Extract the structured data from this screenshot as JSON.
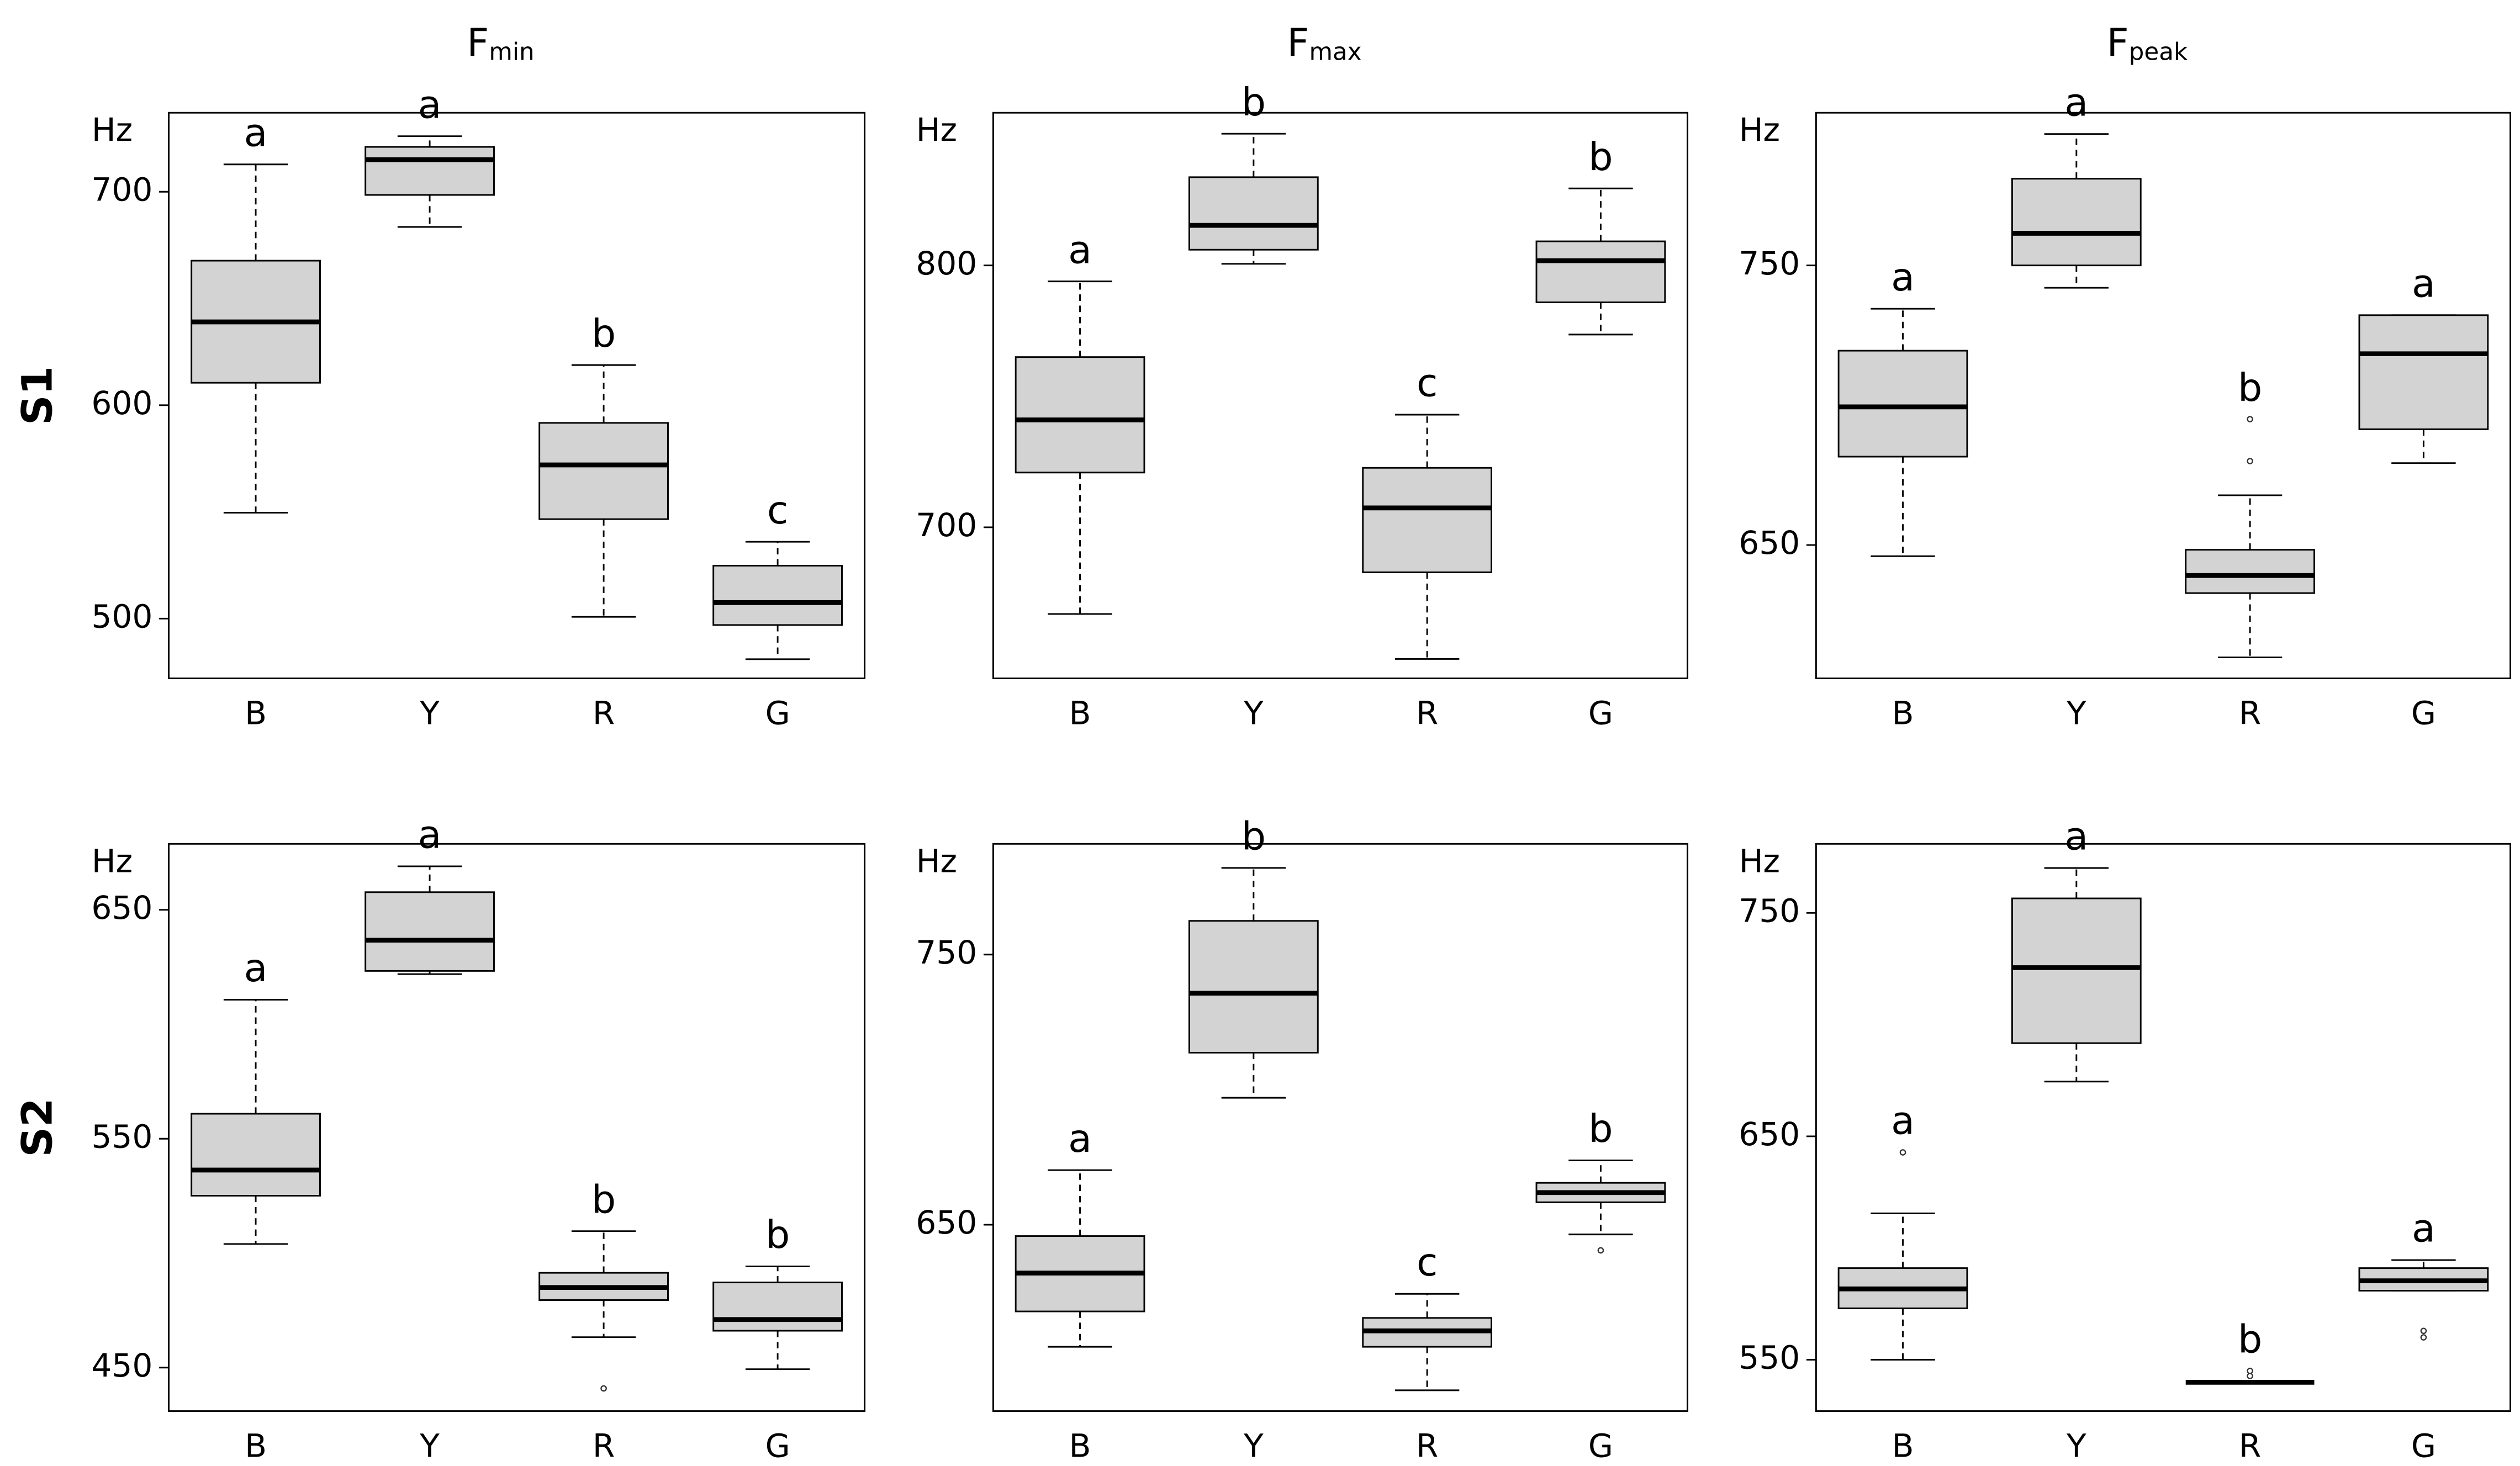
{
  "column_titles": [
    {
      "main": "F",
      "sub": "min"
    },
    {
      "main": "F",
      "sub": "max"
    },
    {
      "main": "F",
      "sub": "peak"
    }
  ],
  "row_labels": [
    "S1",
    "S2"
  ],
  "chart_data": [
    {
      "type": "box",
      "ylabel": "Hz",
      "categories": [
        "B",
        "Y",
        "R",
        "G"
      ],
      "ylim": [
        472,
        737
      ],
      "yticks": [
        500,
        600,
        700
      ],
      "fill": "#d3d3d3",
      "whisker_low": [
        549.6,
        683.5,
        500.8,
        481
      ],
      "q1": [
        610.5,
        698.5,
        546.6,
        497
      ],
      "median": [
        639,
        715,
        572,
        507.5
      ],
      "q3": [
        667.7,
        721,
        591.7,
        524.8
      ],
      "whisker_high": [
        712.8,
        726,
        618.8,
        536
      ],
      "outliers": [
        [],
        [],
        [],
        []
      ],
      "letters": [
        "a",
        "a",
        "b",
        "c"
      ]
    },
    {
      "type": "box",
      "ylabel": "Hz",
      "categories": [
        "B",
        "Y",
        "R",
        "G"
      ],
      "ylim": [
        642.3,
        858.3
      ],
      "yticks": [
        700,
        800
      ],
      "fill": "#d3d3d3",
      "whisker_low": [
        666.9,
        800.6,
        649.7,
        773.6
      ],
      "q1": [
        720.9,
        806,
        682.8,
        785.9
      ],
      "median": [
        741,
        815.3,
        707.4,
        801.8
      ],
      "q3": [
        765,
        833.7,
        722.7,
        809.2
      ],
      "whisker_high": [
        793.9,
        850.3,
        743,
        829.4
      ],
      "outliers": [
        [],
        [],
        [],
        []
      ],
      "letters": [
        "a",
        "b",
        "c",
        "b"
      ]
    },
    {
      "type": "box",
      "ylabel": "Hz",
      "categories": [
        "B",
        "Y",
        "R",
        "G"
      ],
      "ylim": [
        602.3,
        804.6
      ],
      "yticks": [
        650,
        750
      ],
      "fill": "#d3d3d3",
      "whisker_low": [
        646,
        742,
        609.8,
        679.3
      ],
      "q1": [
        681.6,
        750,
        632.8,
        691.4
      ],
      "median": [
        699.4,
        761.5,
        639.1,
        718.4
      ],
      "q3": [
        719.5,
        781,
        648.3,
        732.2
      ],
      "whisker_high": [
        734.5,
        797,
        667.8,
        732.2
      ],
      "outliers": [
        [],
        [],
        [
          695,
          680
        ],
        []
      ],
      "letters": [
        "a",
        "a",
        "b",
        "a"
      ]
    },
    {
      "type": "box",
      "ylabel": "Hz",
      "categories": [
        "B",
        "Y",
        "R",
        "G"
      ],
      "ylim": [
        431,
        678.8
      ],
      "yticks": [
        450,
        550,
        650
      ],
      "fill": "#d3d3d3",
      "whisker_low": [
        504,
        621.9,
        463.3,
        449.3
      ],
      "q1": [
        525.1,
        623.3,
        479.5,
        466.1
      ],
      "median": [
        536.3,
        636.7,
        485,
        471
      ],
      "q3": [
        560.9,
        657.7,
        491.4,
        487.2
      ],
      "whisker_high": [
        610.7,
        669,
        509.6,
        494.2
      ],
      "outliers": [
        [],
        [],
        [
          440.9
        ],
        []
      ],
      "letters": [
        "a",
        "a",
        "b",
        "b"
      ]
    },
    {
      "type": "box",
      "ylabel": "Hz",
      "categories": [
        "B",
        "Y",
        "R",
        "G"
      ],
      "ylim": [
        581,
        791
      ],
      "yticks": [
        650,
        750
      ],
      "fill": "#d3d3d3",
      "whisker_low": [
        604.8,
        697,
        588.7,
        646.4
      ],
      "q1": [
        617.9,
        713.7,
        604.8,
        658.3
      ],
      "median": [
        632.1,
        735.7,
        610.7,
        661.9
      ],
      "q3": [
        645.8,
        762.5,
        615.5,
        665.5
      ],
      "whisker_high": [
        670.2,
        782.1,
        624.4,
        673.8
      ],
      "outliers": [
        [],
        [],
        [],
        [
          640.5
        ]
      ],
      "letters": [
        "a",
        "b",
        "c",
        "b"
      ]
    },
    {
      "type": "box",
      "ylabel": "Hz",
      "categories": [
        "B",
        "Y",
        "R",
        "G"
      ],
      "ylim": [
        527,
        780.9
      ],
      "yticks": [
        550,
        650,
        750
      ],
      "fill": "#d3d3d3",
      "whisker_low": [
        550,
        674.5,
        539.9,
        580.9
      ],
      "q1": [
        573,
        691.7,
        539.9,
        580.9
      ],
      "median": [
        581.7,
        725.5,
        539.9,
        585.3
      ],
      "q3": [
        591,
        756.5,
        539.9,
        591
      ],
      "whisker_high": [
        615.5,
        770.1,
        539.9,
        594.6
      ],
      "outliers": [
        [
          642.8
        ],
        [],
        [
          545,
          542.7
        ],
        [
          562.9,
          560
        ]
      ],
      "letters": [
        "a",
        "a",
        "b",
        "a"
      ]
    }
  ]
}
